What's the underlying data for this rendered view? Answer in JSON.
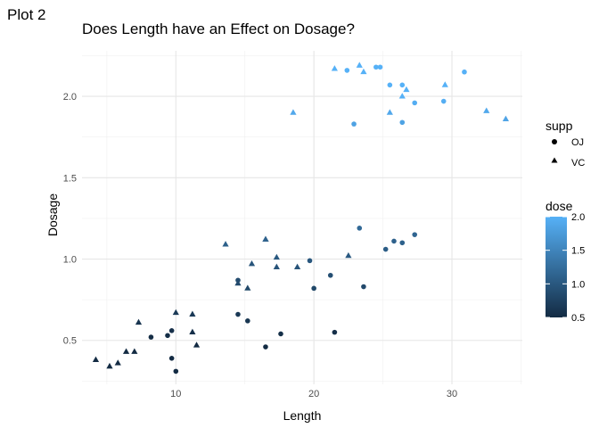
{
  "plot_tag": "Plot 2",
  "chart_data": {
    "type": "scatter",
    "title": "Does Length have an Effect on Dosage?",
    "xlabel": "Length",
    "ylabel": "Dosage",
    "xlim": [
      3.2,
      35.1
    ],
    "ylim": [
      0.23,
      2.28
    ],
    "x_ticks": [
      10,
      20,
      30
    ],
    "x_tick_labels": [
      "10",
      "20",
      "30"
    ],
    "y_ticks": [
      0.5,
      1.0,
      1.5,
      2.0
    ],
    "y_tick_labels": [
      "0.5",
      "1.0",
      "1.5",
      "2.0"
    ],
    "grid": true,
    "color_scale": {
      "low_color": "#132B43",
      "high_color": "#56B1F7",
      "domain": [
        0.5,
        2.0
      ]
    },
    "legend_shape": {
      "title": "supp",
      "entries": [
        {
          "label": "OJ",
          "shape": "circle"
        },
        {
          "label": "VC",
          "shape": "triangle"
        }
      ]
    },
    "legend_color": {
      "title": "dose",
      "ticks": [
        0.5,
        1.0,
        1.5,
        2.0
      ],
      "tick_labels": [
        "0.5",
        "1.0",
        "1.5",
        "2.0"
      ]
    },
    "series": [
      {
        "name": "OJ",
        "shape": "circle",
        "points": [
          {
            "x": 8.2,
            "y": 0.52
          },
          {
            "x": 9.4,
            "y": 0.53
          },
          {
            "x": 9.7,
            "y": 0.56
          },
          {
            "x": 9.7,
            "y": 0.39
          },
          {
            "x": 10.0,
            "y": 0.31
          },
          {
            "x": 14.5,
            "y": 0.66
          },
          {
            "x": 15.2,
            "y": 0.62
          },
          {
            "x": 16.5,
            "y": 0.46
          },
          {
            "x": 17.6,
            "y": 0.54
          },
          {
            "x": 21.5,
            "y": 0.55
          },
          {
            "x": 14.5,
            "y": 0.87
          },
          {
            "x": 19.7,
            "y": 0.99
          },
          {
            "x": 20.0,
            "y": 0.82
          },
          {
            "x": 21.2,
            "y": 0.9
          },
          {
            "x": 23.3,
            "y": 1.19
          },
          {
            "x": 23.6,
            "y": 0.83
          },
          {
            "x": 25.2,
            "y": 1.06
          },
          {
            "x": 25.8,
            "y": 1.11
          },
          {
            "x": 26.4,
            "y": 1.1
          },
          {
            "x": 27.3,
            "y": 1.15
          },
          {
            "x": 22.4,
            "y": 2.16
          },
          {
            "x": 22.9,
            "y": 1.83
          },
          {
            "x": 24.5,
            "y": 2.18
          },
          {
            "x": 24.8,
            "y": 2.18
          },
          {
            "x": 25.5,
            "y": 2.07
          },
          {
            "x": 26.4,
            "y": 2.07
          },
          {
            "x": 26.4,
            "y": 1.84
          },
          {
            "x": 27.3,
            "y": 1.96
          },
          {
            "x": 29.4,
            "y": 1.97
          },
          {
            "x": 30.9,
            "y": 2.15
          }
        ]
      },
      {
        "name": "VC",
        "shape": "triangle",
        "points": [
          {
            "x": 4.2,
            "y": 0.38
          },
          {
            "x": 5.2,
            "y": 0.34
          },
          {
            "x": 5.8,
            "y": 0.36
          },
          {
            "x": 6.4,
            "y": 0.43
          },
          {
            "x": 7.0,
            "y": 0.43
          },
          {
            "x": 7.3,
            "y": 0.61
          },
          {
            "x": 10.0,
            "y": 0.67
          },
          {
            "x": 11.2,
            "y": 0.55
          },
          {
            "x": 11.2,
            "y": 0.66
          },
          {
            "x": 11.5,
            "y": 0.47
          },
          {
            "x": 13.6,
            "y": 1.09
          },
          {
            "x": 14.5,
            "y": 0.85
          },
          {
            "x": 15.2,
            "y": 0.82
          },
          {
            "x": 15.5,
            "y": 0.97
          },
          {
            "x": 16.5,
            "y": 1.12
          },
          {
            "x": 16.5,
            "y": 1.12
          },
          {
            "x": 17.3,
            "y": 0.95
          },
          {
            "x": 17.3,
            "y": 1.01
          },
          {
            "x": 18.8,
            "y": 0.95
          },
          {
            "x": 22.5,
            "y": 1.02
          },
          {
            "x": 18.5,
            "y": 1.9
          },
          {
            "x": 21.5,
            "y": 2.17
          },
          {
            "x": 23.3,
            "y": 2.19
          },
          {
            "x": 23.6,
            "y": 2.15
          },
          {
            "x": 25.5,
            "y": 1.9
          },
          {
            "x": 26.4,
            "y": 2.0
          },
          {
            "x": 26.7,
            "y": 2.04
          },
          {
            "x": 29.5,
            "y": 2.07
          },
          {
            "x": 32.5,
            "y": 1.91
          },
          {
            "x": 33.9,
            "y": 1.86
          }
        ]
      }
    ]
  }
}
